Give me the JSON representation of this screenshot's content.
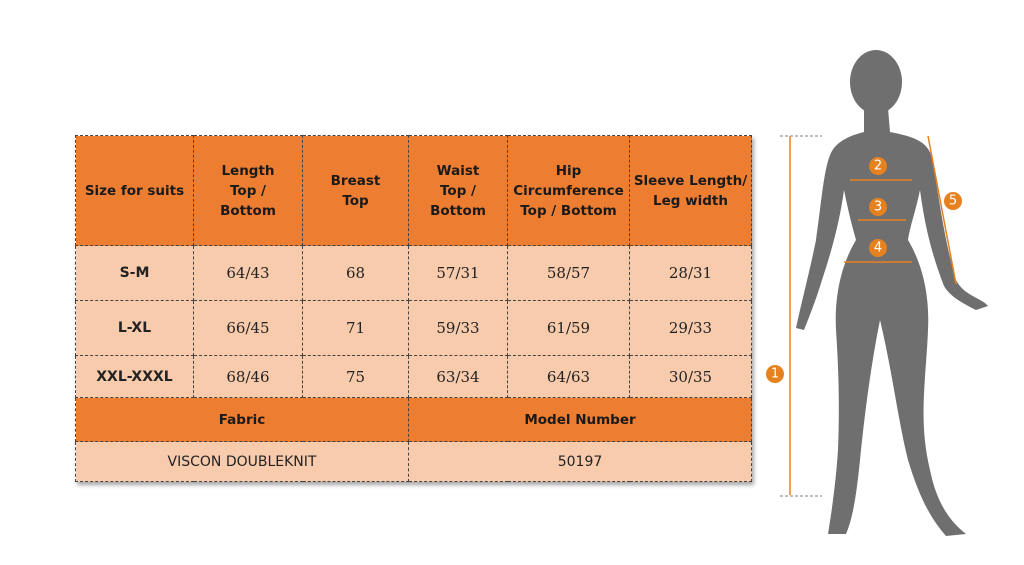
{
  "table": {
    "header": [
      [
        "Size for suits"
      ],
      [
        "Length",
        "Top /",
        "Bottom"
      ],
      [
        "Breast",
        "Top"
      ],
      [
        "Waist",
        "Top /",
        "Bottom"
      ],
      [
        "Hip",
        "Circumference",
        "Top / Bottom"
      ],
      [
        "Sleeve Length/",
        "Leg width"
      ]
    ],
    "rows": [
      [
        "S-M",
        "64/43",
        "68",
        "57/31",
        "58/57",
        "28/31"
      ],
      [
        "L-XL",
        "66/45",
        "71",
        "59/33",
        "61/59",
        "29/33"
      ],
      [
        "XXL-XXXL",
        "68/46",
        "75",
        "63/34",
        "64/63",
        "30/35"
      ]
    ],
    "footer_header": [
      "Fabric",
      "Model Number"
    ],
    "footer_values": [
      "VISCON DOUBLEKNIT",
      "50197"
    ]
  },
  "figure": {
    "markers": [
      "1",
      "2",
      "3",
      "4",
      "5"
    ]
  }
}
